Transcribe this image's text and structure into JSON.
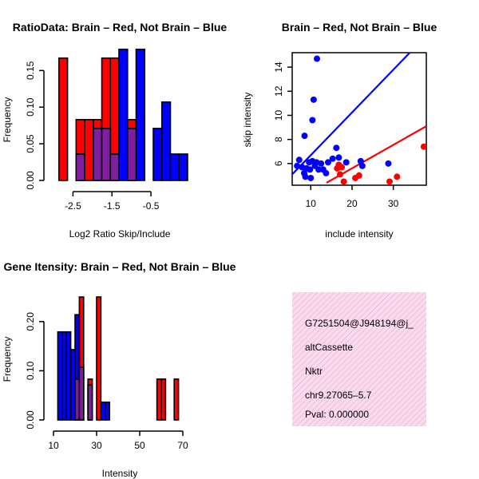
{
  "colors": {
    "red": "#ff0000",
    "blue": "#0000ff",
    "overlap": "#7f1f9f",
    "info_bg": "#f9dbee",
    "info_hatch": "#ee9cce",
    "pval": "#a00000"
  },
  "chart_data": [
    {
      "id": "ratio_hist",
      "type": "bar",
      "title": "RatioData: Brain – Red, Not Brain – Blue",
      "xlabel": "Log2 Ratio Skip/Include",
      "ylabel": "Frequency",
      "xlim": [
        -3.0,
        0.4
      ],
      "ylim": [
        0,
        0.17
      ],
      "xticks": [
        -2.5,
        -1.5,
        -0.5
      ],
      "xtick_labels": [
        "-2.5",
        "-1.5",
        "-0.5"
      ],
      "yticks": [
        0.0,
        0.05,
        0.1,
        0.15
      ],
      "ytick_labels": [
        "0.00",
        "0.05",
        "0.10",
        "0.15"
      ],
      "series": [
        {
          "name": "Brain",
          "color": "red",
          "bars": [
            {
              "x0": -2.86,
              "x1": -2.64,
              "y": 0.167
            },
            {
              "x0": -2.42,
              "x1": -2.2,
              "y": 0.083
            },
            {
              "x0": -2.2,
              "x1": -1.98,
              "y": 0.083
            },
            {
              "x0": -1.98,
              "x1": -1.76,
              "y": 0.083
            },
            {
              "x0": -1.76,
              "x1": -1.54,
              "y": 0.167
            },
            {
              "x0": -1.54,
              "x1": -1.32,
              "y": 0.167
            },
            {
              "x0": -1.1,
              "x1": -0.88,
              "y": 0.083
            }
          ]
        },
        {
          "name": "Not Brain",
          "color": "blue",
          "bars": [
            {
              "x0": -2.42,
              "x1": -2.2,
              "y": 0.036
            },
            {
              "x0": -1.98,
              "x1": -1.76,
              "y": 0.071
            },
            {
              "x0": -1.76,
              "x1": -1.54,
              "y": 0.071
            },
            {
              "x0": -1.54,
              "x1": -1.32,
              "y": 0.036
            },
            {
              "x0": -1.32,
              "x1": -1.1,
              "y": 0.179
            },
            {
              "x0": -1.1,
              "x1": -0.88,
              "y": 0.071
            },
            {
              "x0": -0.88,
              "x1": -0.66,
              "y": 0.179
            },
            {
              "x0": -0.44,
              "x1": -0.22,
              "y": 0.071
            },
            {
              "x0": -0.22,
              "x1": 0.0,
              "y": 0.107
            },
            {
              "x0": 0.0,
              "x1": 0.22,
              "y": 0.036
            },
            {
              "x0": 0.22,
              "x1": 0.44,
              "y": 0.036
            }
          ]
        }
      ]
    },
    {
      "id": "scatter",
      "type": "scatter",
      "title": "Brain – Red, Not Brain – Blue",
      "xlabel": "include intensity",
      "ylabel": "skip intensity",
      "xlim": [
        5.5,
        38
      ],
      "ylim": [
        4.2,
        15.2
      ],
      "xticks": [
        10,
        20,
        30
      ],
      "xtick_labels": [
        "10",
        "20",
        "30"
      ],
      "yticks": [
        6,
        8,
        10,
        12,
        14
      ],
      "ytick_labels": [
        "6",
        "8",
        "10",
        "12",
        "14"
      ],
      "series": [
        {
          "name": "Not Brain",
          "color": "blue",
          "points": [
            [
              11.5,
              14.7
            ],
            [
              10.7,
              11.3
            ],
            [
              8.5,
              8.3
            ],
            [
              10.4,
              9.6
            ],
            [
              6.7,
              5.8
            ],
            [
              7.2,
              6.3
            ],
            [
              7.9,
              5.7
            ],
            [
              8.4,
              5.2
            ],
            [
              8.7,
              4.9
            ],
            [
              9.0,
              5.6
            ],
            [
              9.6,
              6.1
            ],
            [
              9.8,
              5.5
            ],
            [
              10.0,
              4.8
            ],
            [
              10.4,
              6.2
            ],
            [
              11.0,
              5.8
            ],
            [
              11.4,
              6.1
            ],
            [
              11.9,
              5.5
            ],
            [
              12.5,
              6.0
            ],
            [
              13.0,
              5.5
            ],
            [
              13.7,
              5.2
            ],
            [
              14.2,
              6.1
            ],
            [
              15.3,
              6.4
            ],
            [
              16.2,
              7.3
            ],
            [
              16.8,
              6.5
            ],
            [
              18.6,
              6.1
            ],
            [
              22.1,
              6.2
            ],
            [
              22.5,
              5.8
            ],
            [
              28.8,
              6.0
            ]
          ],
          "fit": [
            [
              5.5,
              5.1
            ],
            [
              34.0,
              15.2
            ]
          ]
        },
        {
          "name": "Brain",
          "color": "red",
          "points": [
            [
              16.4,
              5.6
            ],
            [
              16.8,
              5.9
            ],
            [
              17.1,
              5.1
            ],
            [
              17.5,
              5.7
            ],
            [
              18.0,
              4.5
            ],
            [
              20.8,
              4.8
            ],
            [
              21.7,
              5.0
            ],
            [
              29.1,
              4.5
            ],
            [
              30.9,
              4.9
            ],
            [
              37.4,
              7.4
            ]
          ],
          "fit": [
            [
              13.8,
              4.4
            ],
            [
              38.0,
              9.1
            ]
          ]
        }
      ]
    },
    {
      "id": "intensity_hist",
      "type": "bar",
      "title": "Gene Itensity: Brain – Red, Not Brain – Blue",
      "xlabel": "Intensity",
      "ylabel": "Frequency",
      "xlim": [
        10.0,
        70.0
      ],
      "ylim": [
        0,
        0.25
      ],
      "xticks": [
        10,
        30,
        50,
        70
      ],
      "xtick_labels": [
        "10",
        "30",
        "50",
        "70"
      ],
      "yticks": [
        0.0,
        0.1,
        0.2
      ],
      "ytick_labels": [
        "0.00",
        "0.10",
        "0.20"
      ],
      "series": [
        {
          "name": "Brain",
          "color": "red",
          "bars": [
            {
              "x0": 20,
              "x1": 22,
              "y": 0.083
            },
            {
              "x0": 22,
              "x1": 24,
              "y": 0.25
            },
            {
              "x0": 26,
              "x1": 28,
              "y": 0.083
            },
            {
              "x0": 30,
              "x1": 32,
              "y": 0.25
            },
            {
              "x0": 58,
              "x1": 60,
              "y": 0.083
            },
            {
              "x0": 60,
              "x1": 62,
              "y": 0.083
            },
            {
              "x0": 66,
              "x1": 68,
              "y": 0.083
            }
          ]
        },
        {
          "name": "Not Brain",
          "color": "blue",
          "bars": [
            {
              "x0": 12,
              "x1": 14,
              "y": 0.179
            },
            {
              "x0": 14,
              "x1": 16,
              "y": 0.179
            },
            {
              "x0": 16,
              "x1": 18,
              "y": 0.179
            },
            {
              "x0": 18,
              "x1": 20,
              "y": 0.143
            },
            {
              "x0": 20,
              "x1": 22,
              "y": 0.214
            },
            {
              "x0": 22,
              "x1": 24,
              "y": 0.107
            },
            {
              "x0": 26,
              "x1": 28,
              "y": 0.071
            },
            {
              "x0": 32,
              "x1": 34,
              "y": 0.036
            },
            {
              "x0": 34,
              "x1": 36,
              "y": 0.036
            }
          ]
        }
      ]
    }
  ],
  "info": {
    "id": "G7251504@J948194@j_",
    "event": "altCassette",
    "gene": "Nktr",
    "location": "chr9.27065–5.7",
    "pval": "Pval: 0.000000"
  }
}
